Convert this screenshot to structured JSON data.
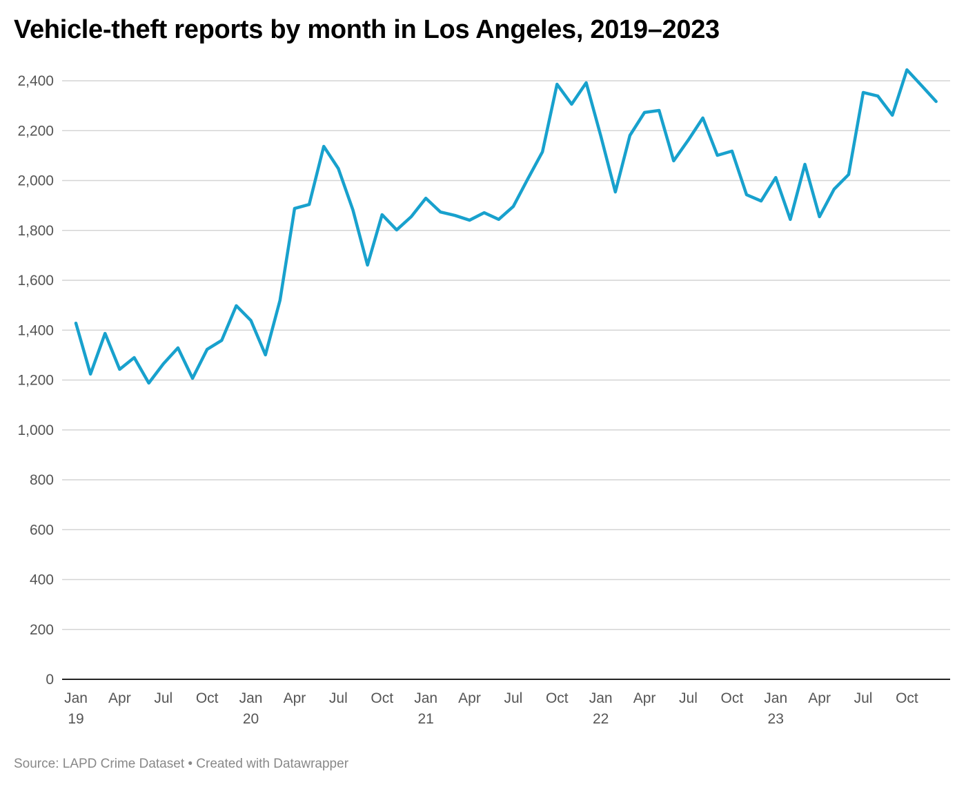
{
  "chart_data": {
    "type": "line",
    "title": "Vehicle-theft reports by month in Los Angeles, 2019–2023",
    "source": "Source: LAPD Crime Dataset • Created with Datawrapper",
    "xlabel": "",
    "ylabel": "",
    "ylim": [
      0,
      2400
    ],
    "yticks": [
      0,
      200,
      400,
      600,
      800,
      1000,
      1200,
      1400,
      1600,
      1800,
      2000,
      2200,
      2400
    ],
    "ytick_labels": [
      "0",
      "200",
      "400",
      "600",
      "800",
      "1,000",
      "1,200",
      "1,400",
      "1,600",
      "1,800",
      "2,000",
      "2,200",
      "2,400"
    ],
    "xticks": [
      {
        "month": "2019-01",
        "label": "Jan",
        "year": "19"
      },
      {
        "month": "2019-04",
        "label": "Apr"
      },
      {
        "month": "2019-07",
        "label": "Jul"
      },
      {
        "month": "2019-10",
        "label": "Oct"
      },
      {
        "month": "2020-01",
        "label": "Jan",
        "year": "20"
      },
      {
        "month": "2020-04",
        "label": "Apr"
      },
      {
        "month": "2020-07",
        "label": "Jul"
      },
      {
        "month": "2020-10",
        "label": "Oct"
      },
      {
        "month": "2021-01",
        "label": "Jan",
        "year": "21"
      },
      {
        "month": "2021-04",
        "label": "Apr"
      },
      {
        "month": "2021-07",
        "label": "Jul"
      },
      {
        "month": "2021-10",
        "label": "Oct"
      },
      {
        "month": "2022-01",
        "label": "Jan",
        "year": "22"
      },
      {
        "month": "2022-04",
        "label": "Apr"
      },
      {
        "month": "2022-07",
        "label": "Jul"
      },
      {
        "month": "2022-10",
        "label": "Oct"
      },
      {
        "month": "2023-01",
        "label": "Jan",
        "year": "23"
      },
      {
        "month": "2023-04",
        "label": "Apr"
      },
      {
        "month": "2023-07",
        "label": "Jul"
      },
      {
        "month": "2023-10",
        "label": "Oct"
      }
    ],
    "grid": true,
    "line_color": "#18a1cd",
    "series": [
      {
        "x_start": "2019-01",
        "values": [
          1428,
          1224,
          1387,
          1243,
          1290,
          1188,
          1265,
          1329,
          1207,
          1323,
          1359,
          1498,
          1439,
          1301,
          1520,
          1888,
          1904,
          2137,
          2048,
          1882,
          1661,
          1863,
          1802,
          1855,
          1929,
          1874,
          1860,
          1841,
          1871,
          1844,
          1896,
          2007,
          2115,
          2386,
          2306,
          2392,
          2179,
          1954,
          2181,
          2273,
          2281,
          2079,
          2162,
          2251,
          2101,
          2118,
          1943,
          1918,
          2012,
          1844,
          2065,
          1855,
          1965,
          2024,
          2353,
          2339,
          2262,
          2444,
          2381,
          2317
        ]
      }
    ]
  }
}
